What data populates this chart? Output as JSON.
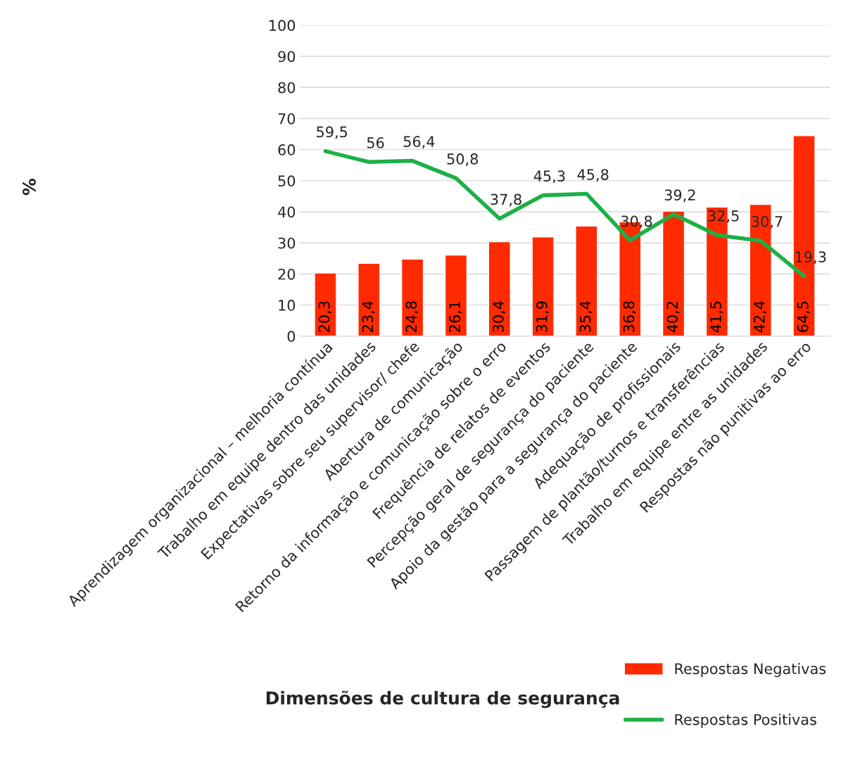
{
  "chart_data": {
    "type": "bar",
    "xlabel": "Dimensões de cultura de segurança",
    "ylabel": "%",
    "categories": [
      "Aprendizagem organizacional – melhoria contínua",
      "Trabalho em equipe dentro das unidades",
      "Expectativas sobre seu supervisor/ chefe",
      "Abertura de comunicação",
      "Retorno da informação e comunicação sobre o erro",
      "Frequência de relatos de eventos",
      "Percepção geral de segurança do paciente",
      "Apoio da gestão para a segurança do paciente",
      "Adequação de profissionais",
      "Passagem de plantão/turnos e transferências",
      "Trabalho em equipe entre as unidades",
      "Respostas não punitivas ao erro"
    ],
    "series": [
      {
        "name": "Respostas Negativas",
        "color": "#ff2a00",
        "values": [
          20.3,
          23.4,
          24.8,
          26.1,
          30.4,
          31.9,
          35.4,
          36.8,
          40.2,
          41.5,
          42.4,
          64.5
        ],
        "value_labels": [
          "20,3",
          "23,4",
          "24,8",
          "26,1",
          "30,4",
          "31,9",
          "35,4",
          "36,8",
          "40,2",
          "41,5",
          "42,4",
          "64,5"
        ]
      },
      {
        "name": "Respostas Positivas",
        "type": "line",
        "color": "#1db046",
        "values": [
          59.5,
          56,
          56.4,
          50.8,
          37.8,
          45.3,
          45.8,
          30.8,
          39.2,
          32.5,
          30.7,
          19.3
        ],
        "value_labels": [
          "59,5",
          "56",
          "56,4",
          "50,8",
          "37,8",
          "45,3",
          "45,8",
          "30,8",
          "39,2",
          "32,5",
          "30,7",
          "19,3"
        ]
      }
    ],
    "ylim": [
      0,
      100
    ],
    "yticks": [
      0,
      10,
      20,
      30,
      40,
      50,
      60,
      70,
      80,
      90,
      100
    ],
    "grid": "y",
    "legend": "bottom right",
    "marker": "none"
  }
}
